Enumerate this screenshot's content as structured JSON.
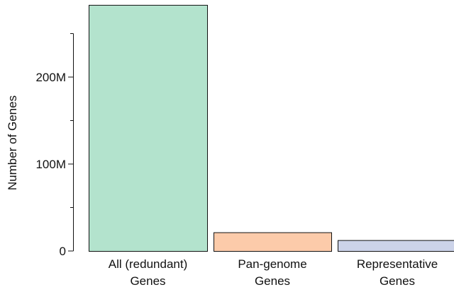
{
  "chart_data": {
    "type": "bar",
    "ylabel": "Number of Genes",
    "categories": [
      [
        "All (redundant)",
        "Genes"
      ],
      [
        "Pan-genome",
        "Genes"
      ],
      [
        "Representative",
        "Genes"
      ]
    ],
    "values": [
      283000000,
      21500000,
      12500000
    ],
    "colors": [
      "#b3e3cd",
      "#fccbaa",
      "#ccd3e9"
    ],
    "edge_color": "#111111",
    "yticks": [
      {
        "value": 0,
        "label": "0"
      },
      {
        "value": 100000000,
        "label": "100M"
      },
      {
        "value": 200000000,
        "label": "200M"
      }
    ],
    "minor_yticks": [
      50000000,
      150000000,
      250000000
    ],
    "ylim": [
      0,
      287000000
    ],
    "grid": false
  }
}
